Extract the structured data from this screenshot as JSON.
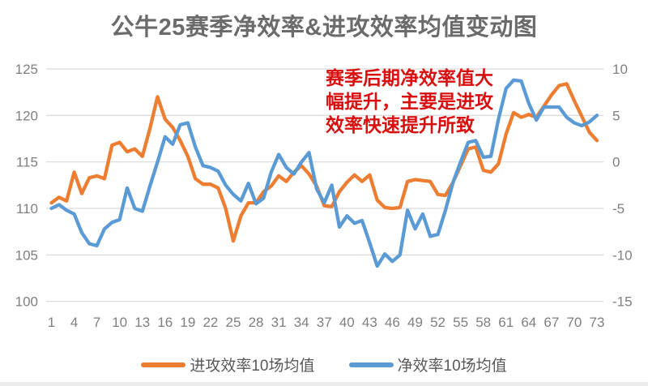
{
  "page": {
    "background": "#ffffff"
  },
  "chart_data": {
    "type": "line",
    "title": "公牛25赛季净效率&进攻效率均值变动图",
    "x_count": 73,
    "x_tick_labels": [
      1,
      4,
      7,
      10,
      13,
      16,
      19,
      22,
      25,
      28,
      31,
      34,
      37,
      40,
      43,
      46,
      49,
      52,
      55,
      58,
      61,
      64,
      67,
      70,
      73
    ],
    "axes": {
      "left": {
        "min": 100,
        "max": 125,
        "step": 5,
        "ticks": [
          125,
          120,
          115,
          110,
          105,
          100
        ]
      },
      "right": {
        "min": -15,
        "max": 10,
        "step": 5,
        "ticks": [
          10,
          5,
          0,
          -5,
          -10,
          -15
        ]
      }
    },
    "grid": true,
    "gridline_color": "#d9d9d9",
    "tick_label_color": "#7f7f7f",
    "legend_position": "bottom",
    "series": [
      {
        "name": "进攻效率10场均值",
        "axis": "left",
        "color": "#ED7D31",
        "values": [
          110.6,
          111.2,
          110.8,
          113.9,
          111.6,
          113.3,
          113.5,
          113.2,
          116.8,
          117.1,
          116.1,
          116.4,
          115.6,
          118.6,
          122.0,
          119.6,
          118.7,
          117.3,
          115.6,
          113.2,
          112.6,
          112.6,
          112.2,
          110.0,
          106.5,
          109.2,
          110.6,
          110.6,
          111.8,
          112.4,
          113.5,
          112.9,
          113.9,
          114.6,
          113.7,
          112.4,
          110.3,
          110.2,
          111.8,
          112.8,
          113.6,
          112.9,
          113.6,
          110.9,
          110.1,
          110.0,
          110.1,
          112.9,
          113.1,
          113.0,
          112.9,
          111.5,
          111.4,
          112.8,
          114.6,
          116.4,
          116.6,
          114.1,
          113.9,
          114.8,
          118.0,
          120.3,
          119.8,
          120.1,
          119.8,
          121.0,
          122.2,
          123.2,
          123.4,
          121.6,
          119.9,
          118.2,
          117.3
        ]
      },
      {
        "name": "净效率10场均值",
        "axis": "right",
        "color": "#5B9BD5",
        "values": [
          -5.0,
          -4.6,
          -5.2,
          -5.6,
          -7.6,
          -8.8,
          -9.0,
          -7.2,
          -6.5,
          -6.2,
          -2.8,
          -5.0,
          -5.3,
          -2.6,
          0.0,
          2.7,
          1.9,
          4.0,
          4.2,
          1.6,
          -0.4,
          -0.6,
          -1.0,
          -2.5,
          -3.5,
          -4.2,
          -2.3,
          -4.5,
          -3.9,
          -1.1,
          0.8,
          -0.6,
          -1.3,
          0.0,
          1.0,
          -2.9,
          -4.4,
          -2.5,
          -7.0,
          -5.8,
          -6.6,
          -6.3,
          -8.7,
          -11.2,
          -9.9,
          -10.7,
          -10.0,
          -5.2,
          -7.2,
          -5.6,
          -8.0,
          -7.8,
          -5.2,
          -2.2,
          0.0,
          2.1,
          2.3,
          0.5,
          0.6,
          4.6,
          7.9,
          8.8,
          8.7,
          6.3,
          4.5,
          5.9,
          5.9,
          5.9,
          4.8,
          4.2,
          3.9,
          4.3,
          5.0
        ]
      }
    ],
    "annotation": {
      "text": "赛季后期净效率值大\n幅提升，主要是进攻\n效率快速提升所致",
      "color": "#d90f0f"
    }
  },
  "legend": {
    "items": [
      {
        "label": "进攻效率10场均值",
        "color": "#ED7D31"
      },
      {
        "label": "净效率10场均值",
        "color": "#5B9BD5"
      }
    ]
  }
}
